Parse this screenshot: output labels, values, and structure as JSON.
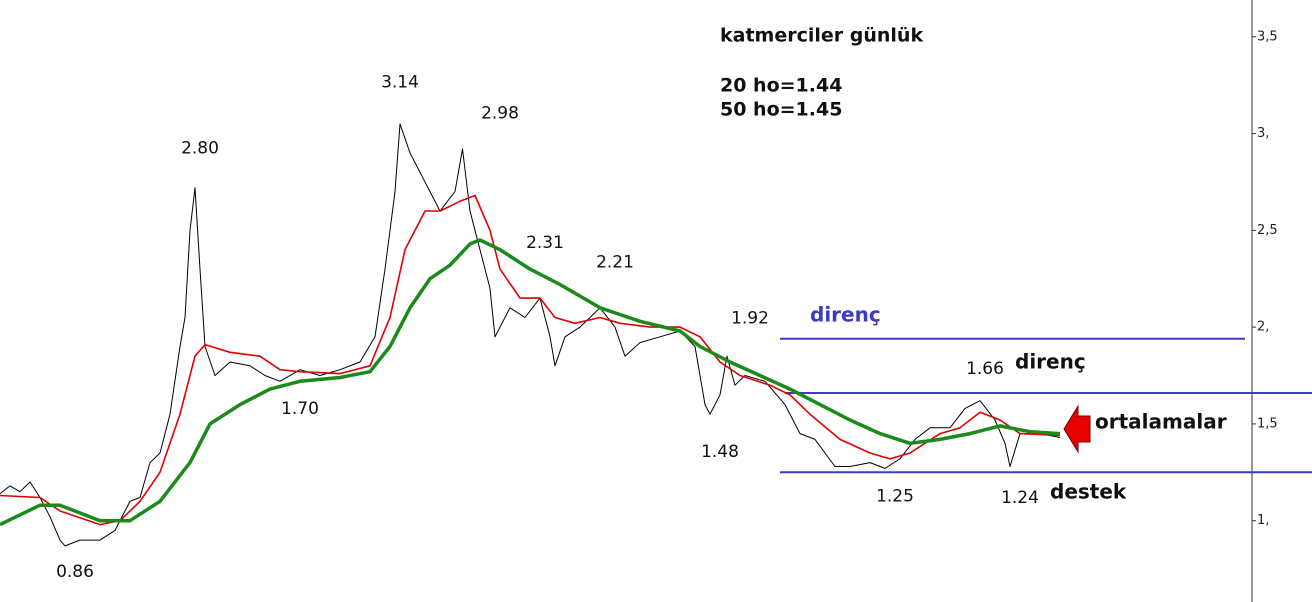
{
  "chart_data": {
    "type": "line",
    "title": "katmerciler günlük",
    "info": [
      "20 ho=1.44",
      "50 ho=1.45"
    ],
    "xlim": [
      0,
      250
    ],
    "ylim": [
      0.58,
      3.69
    ],
    "yticks": [
      {
        "value": 1,
        "label": "1,"
      },
      {
        "value": 1.5,
        "label": "1,5"
      },
      {
        "value": 2,
        "label": "2,"
      },
      {
        "value": 2.5,
        "label": "2,5"
      },
      {
        "value": 3,
        "label": "3,"
      },
      {
        "value": 3.5,
        "label": "3,5"
      }
    ],
    "series": [
      {
        "color": "#000000",
        "width": 1,
        "x": [
          0,
          2,
          4,
          6,
          8,
          10,
          12,
          13,
          16,
          20,
          23,
          26,
          28,
          30,
          32,
          34,
          36,
          37,
          38,
          39,
          40,
          41,
          43,
          46,
          50,
          53,
          56,
          60,
          64,
          68,
          72,
          75,
          77,
          79,
          80,
          82,
          84,
          88,
          91,
          92.5,
          94,
          96,
          98,
          99,
          102,
          105,
          108,
          110,
          111,
          113,
          116,
          120,
          123,
          125,
          128,
          132,
          136,
          139,
          141,
          142,
          144,
          145.4,
          147,
          149,
          153,
          157,
          160,
          163,
          165,
          167,
          170,
          174,
          177,
          180,
          183,
          186,
          190,
          193,
          196,
          199,
          201,
          202,
          204,
          208,
          212
        ],
        "values": [
          1.14,
          1.18,
          1.15,
          1.2,
          1.12,
          1.02,
          0.9,
          0.87,
          0.9,
          0.9,
          0.95,
          1.1,
          1.12,
          1.3,
          1.35,
          1.55,
          1.9,
          2.05,
          2.5,
          2.72,
          2.3,
          1.9,
          1.75,
          1.82,
          1.8,
          1.75,
          1.72,
          1.78,
          1.75,
          1.78,
          1.82,
          1.95,
          2.3,
          2.7,
          3.05,
          2.9,
          2.8,
          2.6,
          2.7,
          2.92,
          2.6,
          2.4,
          2.2,
          1.95,
          2.1,
          2.05,
          2.15,
          1.95,
          1.8,
          1.95,
          2.0,
          2.1,
          2.0,
          1.85,
          1.92,
          1.95,
          1.98,
          1.9,
          1.6,
          1.55,
          1.65,
          1.85,
          1.7,
          1.75,
          1.72,
          1.6,
          1.45,
          1.42,
          1.35,
          1.28,
          1.28,
          1.3,
          1.27,
          1.32,
          1.42,
          1.48,
          1.48,
          1.58,
          1.62,
          1.52,
          1.4,
          1.28,
          1.45,
          1.45,
          1.43
        ]
      },
      {
        "color": "#e00000",
        "width": 1.6,
        "x": [
          0,
          8,
          12,
          20,
          24,
          28,
          32,
          36,
          39,
          41,
          46,
          52,
          56,
          60,
          68,
          74,
          78,
          81,
          85,
          88,
          92,
          95,
          98,
          100,
          104,
          108,
          111,
          115,
          120,
          124,
          130,
          136,
          140,
          144,
          148,
          154,
          158,
          162,
          168,
          174,
          178,
          182,
          188,
          192,
          196,
          200,
          204,
          212
        ],
        "values": [
          1.13,
          1.12,
          1.05,
          0.98,
          1.0,
          1.1,
          1.25,
          1.55,
          1.85,
          1.91,
          1.87,
          1.85,
          1.78,
          1.77,
          1.76,
          1.8,
          2.05,
          2.4,
          2.6,
          2.6,
          2.65,
          2.68,
          2.5,
          2.3,
          2.15,
          2.15,
          2.05,
          2.02,
          2.05,
          2.02,
          2.0,
          2.0,
          1.95,
          1.82,
          1.75,
          1.7,
          1.65,
          1.55,
          1.42,
          1.35,
          1.32,
          1.35,
          1.45,
          1.48,
          1.56,
          1.52,
          1.45,
          1.44
        ]
      },
      {
        "color": "#1a8a1a",
        "width": 3.5,
        "x": [
          0,
          8,
          12,
          20,
          26,
          32,
          38,
          42,
          48,
          54,
          60,
          68,
          74,
          78,
          82,
          86,
          90,
          94,
          96,
          100,
          106,
          112,
          120,
          128,
          136,
          140,
          146,
          152,
          158,
          164,
          170,
          176,
          182,
          188,
          194,
          200,
          206,
          212
        ],
        "values": [
          0.98,
          1.08,
          1.08,
          1.0,
          1.0,
          1.1,
          1.3,
          1.5,
          1.6,
          1.68,
          1.72,
          1.74,
          1.77,
          1.9,
          2.1,
          2.25,
          2.32,
          2.43,
          2.45,
          2.4,
          2.3,
          2.22,
          2.1,
          2.03,
          1.98,
          1.9,
          1.82,
          1.75,
          1.68,
          1.6,
          1.52,
          1.45,
          1.4,
          1.42,
          1.45,
          1.49,
          1.46,
          1.45
        ]
      }
    ],
    "annotations": [
      {
        "x": 15,
        "y": 0.86,
        "label": "0.86",
        "position": "below"
      },
      {
        "x": 40,
        "y": 2.8,
        "label": "2.80",
        "position": "above"
      },
      {
        "x": 60,
        "y": 1.7,
        "label": "1.70",
        "position": "below"
      },
      {
        "x": 80,
        "y": 3.14,
        "label": "3.14",
        "position": "above"
      },
      {
        "x": 100,
        "y": 2.98,
        "label": "2.98",
        "position": "above"
      },
      {
        "x": 109,
        "y": 2.31,
        "label": "2.31",
        "position": "above"
      },
      {
        "x": 123,
        "y": 2.21,
        "label": "2.21",
        "position": "above"
      },
      {
        "x": 150,
        "y": 1.92,
        "label": "1.92",
        "position": "above"
      },
      {
        "x": 144,
        "y": 1.48,
        "label": "1.48",
        "position": "below"
      },
      {
        "x": 197,
        "y": 1.66,
        "label": "1.66",
        "position": "above"
      },
      {
        "x": 179,
        "y": 1.25,
        "label": "1.25",
        "position": "below"
      },
      {
        "x": 204,
        "y": 1.24,
        "label": "1.24",
        "position": "below"
      }
    ],
    "levels": [
      {
        "value": 1.94,
        "from": 156,
        "to": 249,
        "label": "direnç",
        "color": "#3b3bc4"
      },
      {
        "value": 1.66,
        "from": 157,
        "to": 262.4,
        "label": "direnç",
        "color": "#3b3bc4"
      },
      {
        "value": 1.25,
        "from": 156,
        "to": 262.4,
        "label": "destek",
        "color": "#3b3bc4"
      }
    ],
    "arrow_label": "ortalamalar"
  }
}
